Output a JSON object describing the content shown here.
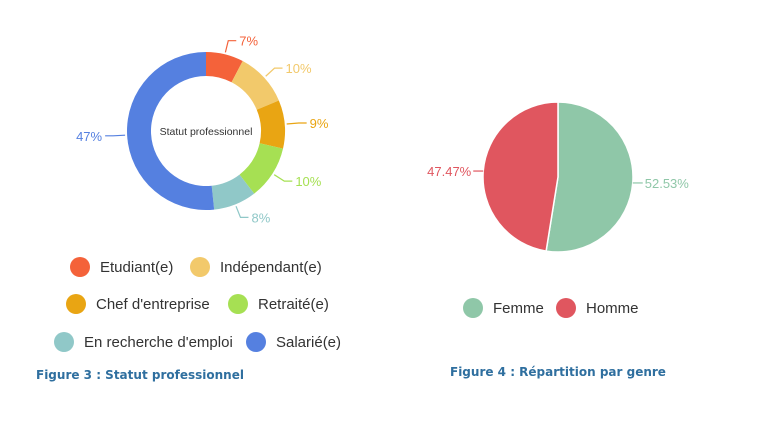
{
  "chart_data": [
    {
      "type": "pie",
      "variant": "donut",
      "center_label": "Statut professionnel",
      "categories": [
        "Etudiant(e)",
        "Indépendant(e)",
        "Chef d'entreprise",
        "Retraité(e)",
        "En recherche d'emploi",
        "Salarié(e)"
      ],
      "values": [
        7,
        10,
        9,
        10,
        8,
        47
      ],
      "value_labels": [
        "7%",
        "10%",
        "9%",
        "10%",
        "8%",
        "47%"
      ],
      "colors": [
        "#f4623a",
        "#f2c96b",
        "#e9a513",
        "#a6e053",
        "#90c8c8",
        "#5580e0"
      ],
      "legend": "bottom",
      "caption": "Figure 3 : Statut professionnel"
    },
    {
      "type": "pie",
      "categories": [
        "Femme",
        "Homme"
      ],
      "values": [
        52.53,
        47.47
      ],
      "value_labels": [
        "52.53%",
        "47.47%"
      ],
      "colors": [
        "#8fc7a8",
        "#e0565f"
      ],
      "legend": "bottom",
      "caption": "Figure 4 : Répartition par genre"
    }
  ]
}
